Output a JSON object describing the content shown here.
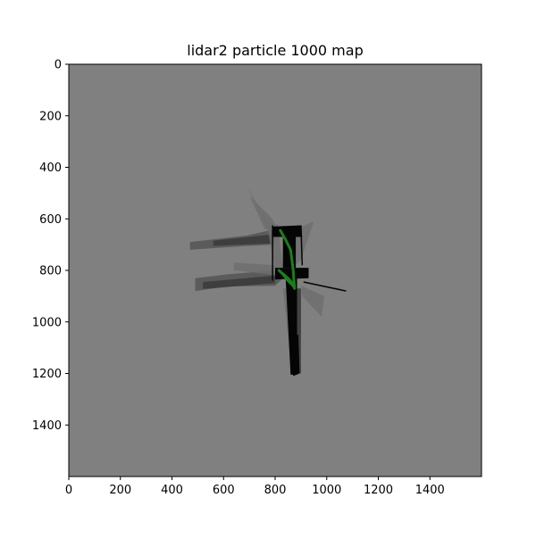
{
  "chart_data": {
    "type": "heatmap",
    "title": "lidar2 particle 1000 map",
    "xlabel": "",
    "ylabel": "",
    "xlim": [
      0,
      1600
    ],
    "ylim": [
      1600,
      0
    ],
    "x_ticks": [
      0,
      200,
      400,
      600,
      800,
      1000,
      1200,
      1400
    ],
    "y_ticks": [
      0,
      200,
      400,
      600,
      800,
      1000,
      1200,
      1400
    ],
    "grid": false,
    "legend": "none",
    "colors": {
      "unknown": "#808080",
      "free_light": "#6e6e6e",
      "free_mid": "#555555",
      "free_dark": "#3a3a3a",
      "occupied": "#050505",
      "trajectory": "#1a7f1a"
    },
    "occupancy": {
      "free_regions": [
        {
          "shade": "free_mid",
          "points": [
            [
              470,
              690
            ],
            [
              690,
              665
            ],
            [
              800,
              640
            ],
            [
              800,
              700
            ],
            [
              690,
              705
            ],
            [
              470,
              720
            ]
          ]
        },
        {
          "shade": "free_mid",
          "points": [
            [
              490,
              830
            ],
            [
              620,
              815
            ],
            [
              800,
              800
            ],
            [
              830,
              830
            ],
            [
              800,
              860
            ],
            [
              620,
              862
            ],
            [
              490,
              880
            ]
          ]
        },
        {
          "shade": "free_dark",
          "points": [
            [
              520,
              845
            ],
            [
              800,
              820
            ],
            [
              800,
              850
            ],
            [
              520,
              872
            ]
          ]
        },
        {
          "shade": "free_dark",
          "points": [
            [
              560,
              685
            ],
            [
              790,
              660
            ],
            [
              790,
              695
            ],
            [
              560,
              705
            ]
          ]
        },
        {
          "shade": "free_light",
          "points": [
            [
              690,
              470
            ],
            [
              750,
              580
            ],
            [
              800,
              620
            ],
            [
              770,
              640
            ]
          ]
        },
        {
          "shade": "free_light",
          "points": [
            [
              700,
              510
            ],
            [
              790,
              600
            ],
            [
              810,
              650
            ],
            [
              760,
              640
            ]
          ]
        },
        {
          "shade": "free_light",
          "points": [
            [
              770,
              630
            ],
            [
              810,
              620
            ],
            [
              830,
              790
            ],
            [
              800,
              800
            ]
          ]
        },
        {
          "shade": "free_light",
          "points": [
            [
              880,
              640
            ],
            [
              950,
              610
            ],
            [
              900,
              760
            ],
            [
              880,
              780
            ]
          ]
        },
        {
          "shade": "free_light",
          "points": [
            [
              900,
              860
            ],
            [
              990,
              900
            ],
            [
              980,
              980
            ],
            [
              905,
              900
            ]
          ]
        },
        {
          "shade": "free_light",
          "points": [
            [
              830,
              870
            ],
            [
              900,
              870
            ],
            [
              900,
              1050
            ],
            [
              860,
              1150
            ]
          ]
        },
        {
          "shade": "free_dark",
          "points": [
            [
              850,
              870
            ],
            [
              900,
              870
            ],
            [
              900,
              1200
            ],
            [
              870,
              1200
            ]
          ]
        },
        {
          "shade": "free_light",
          "points": [
            [
              640,
              770
            ],
            [
              800,
              780
            ],
            [
              820,
              820
            ],
            [
              640,
              800
            ]
          ]
        }
      ],
      "occupied_regions": [
        {
          "points": [
            [
              790,
              630
            ],
            [
              900,
              625
            ],
            [
              905,
              670
            ],
            [
              790,
              670
            ]
          ]
        },
        {
          "points": [
            [
              830,
              640
            ],
            [
              880,
              640
            ],
            [
              880,
              790
            ],
            [
              830,
              790
            ]
          ]
        },
        {
          "points": [
            [
              800,
              790
            ],
            [
              930,
              790
            ],
            [
              930,
              830
            ],
            [
              800,
              835
            ]
          ]
        },
        {
          "points": [
            [
              840,
              820
            ],
            [
              885,
              820
            ],
            [
              885,
              1205
            ],
            [
              860,
              1205
            ]
          ]
        },
        {
          "points": [
            [
              860,
              1050
            ],
            [
              890,
              1050
            ],
            [
              895,
              1200
            ],
            [
              870,
              1210
            ]
          ]
        }
      ],
      "occupied_lines": [
        [
          [
            910,
            845
          ],
          [
            1075,
            880
          ]
        ],
        [
          [
            790,
            625
          ],
          [
            790,
            840
          ]
        ],
        [
          [
            900,
            625
          ],
          [
            905,
            780
          ]
        ]
      ]
    },
    "trajectory": {
      "name": "",
      "x": [
        820,
        840,
        860,
        865,
        870,
        872,
        875,
        870,
        850,
        830,
        815,
        850,
        875
      ],
      "y": [
        645,
        680,
        720,
        760,
        800,
        830,
        870,
        860,
        840,
        815,
        800,
        830,
        860
      ]
    }
  }
}
